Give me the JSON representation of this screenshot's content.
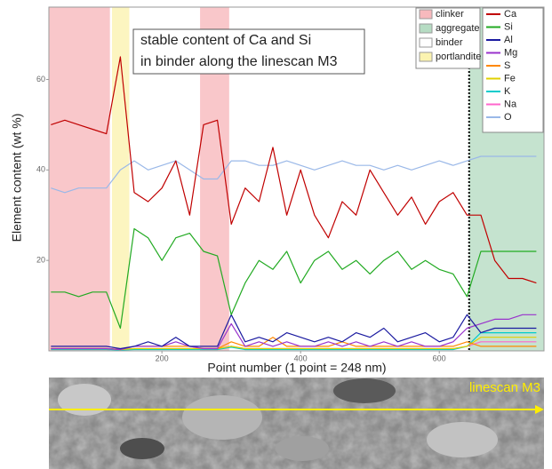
{
  "chart_data": {
    "type": "line",
    "annotation": [
      "stable content of Ca and Si",
      "in binder along the linescan M3"
    ],
    "xlabel": "Point number (1 point = 248 nm)",
    "ylabel": "Element content (wt %)",
    "xlim": [
      37,
      751
    ],
    "ylim": [
      0,
      76
    ],
    "xticks": [
      200,
      400,
      600
    ],
    "yticks": [
      20,
      40,
      60
    ],
    "boundary": 643,
    "region_types": [
      {
        "name": "clinker",
        "color": "#f7b9bd",
        "spans": [
          [
            37,
            125
          ],
          [
            255,
            297
          ]
        ]
      },
      {
        "name": "aggregate",
        "color": "#b6dcc3",
        "spans": [
          [
            643,
            751
          ]
        ]
      },
      {
        "name": "binder",
        "color": "#ffffff",
        "spans": []
      },
      {
        "name": "portlandite",
        "color": "#fbf3b0",
        "spans": [
          [
            128,
            153
          ]
        ]
      }
    ],
    "x": [
      40,
      60,
      80,
      100,
      120,
      140,
      160,
      180,
      200,
      220,
      240,
      260,
      280,
      300,
      320,
      340,
      360,
      380,
      400,
      420,
      440,
      460,
      480,
      500,
      520,
      540,
      560,
      580,
      600,
      620,
      640,
      660,
      680,
      700,
      720,
      740
    ],
    "series": [
      {
        "name": "Ca",
        "color": "#c00000",
        "values": [
          50,
          51,
          50,
          49,
          48,
          65,
          35,
          33,
          36,
          42,
          30,
          50,
          51,
          28,
          36,
          33,
          45,
          30,
          40,
          30,
          25,
          33,
          30,
          40,
          35,
          30,
          34,
          28,
          33,
          35,
          30,
          30,
          20,
          16,
          16,
          15
        ]
      },
      {
        "name": "Si",
        "color": "#22aa22",
        "values": [
          13,
          13,
          12,
          13,
          13,
          5,
          27,
          25,
          20,
          25,
          26,
          22,
          21,
          8,
          15,
          20,
          18,
          22,
          15,
          20,
          22,
          18,
          20,
          17,
          20,
          22,
          18,
          20,
          18,
          17,
          12,
          22,
          22,
          22,
          22,
          22
        ]
      },
      {
        "name": "Al",
        "color": "#1a1aa0",
        "values": [
          1,
          1,
          1,
          1,
          1,
          0.5,
          1,
          2,
          1,
          3,
          1,
          1,
          1,
          8,
          2,
          3,
          2,
          4,
          3,
          2,
          3,
          2,
          4,
          3,
          5,
          2,
          3,
          4,
          2,
          3,
          8,
          4,
          5,
          5,
          5,
          5
        ]
      },
      {
        "name": "Mg",
        "color": "#9933cc",
        "values": [
          0.5,
          0.5,
          0.5,
          0.5,
          0.5,
          0.3,
          1,
          1,
          1,
          2,
          1,
          0.5,
          0.5,
          6,
          1,
          2,
          1,
          2,
          1,
          1,
          2,
          1,
          2,
          1,
          2,
          1,
          2,
          1,
          1,
          2,
          5,
          6,
          7,
          7,
          8,
          8
        ]
      },
      {
        "name": "S",
        "color": "#ff8800",
        "values": [
          0.5,
          0.5,
          0.5,
          0.5,
          0.5,
          0.3,
          1,
          1,
          1,
          1,
          1,
          0.5,
          0.5,
          2,
          1,
          1,
          3,
          1,
          1,
          1,
          1,
          2,
          1,
          1,
          1,
          1,
          1,
          1,
          1,
          1,
          2,
          1,
          1,
          1,
          1,
          1
        ]
      },
      {
        "name": "Fe",
        "color": "#e0d000",
        "values": [
          0.5,
          0.5,
          0.5,
          0.5,
          0.5,
          0.3,
          0.5,
          0.5,
          0.5,
          0.5,
          0.5,
          0.5,
          0.5,
          1,
          0.5,
          0.5,
          0.5,
          0.5,
          0.5,
          0.5,
          0.5,
          0.5,
          0.5,
          0.5,
          0.5,
          0.5,
          0.5,
          0.5,
          0.5,
          0.5,
          1,
          3,
          3,
          3,
          3,
          3
        ]
      },
      {
        "name": "K",
        "color": "#00cccc",
        "values": [
          0.3,
          0.3,
          0.3,
          0.3,
          0.3,
          0.2,
          0.3,
          0.3,
          0.3,
          0.3,
          0.3,
          0.3,
          0.3,
          0.8,
          0.3,
          0.3,
          0.3,
          0.3,
          0.3,
          0.3,
          0.3,
          0.3,
          0.3,
          0.3,
          0.3,
          0.3,
          0.3,
          0.3,
          0.3,
          0.3,
          1,
          4,
          4,
          4,
          4,
          4
        ]
      },
      {
        "name": "Na",
        "color": "#ff66cc",
        "values": [
          0.5,
          0.5,
          0.5,
          0.5,
          0.5,
          0.3,
          0.5,
          0.5,
          0.5,
          0.5,
          0.5,
          0.5,
          0.5,
          1,
          0.5,
          0.5,
          0.5,
          0.5,
          0.5,
          0.5,
          0.5,
          0.5,
          0.5,
          0.5,
          0.5,
          0.5,
          0.5,
          0.5,
          0.5,
          0.5,
          1,
          2,
          2,
          2,
          2,
          2
        ]
      },
      {
        "name": "O",
        "color": "#9ab8e8",
        "values": [
          36,
          35,
          36,
          36,
          36,
          40,
          42,
          40,
          41,
          42,
          40,
          38,
          38,
          42,
          42,
          41,
          41,
          42,
          41,
          40,
          41,
          42,
          41,
          41,
          40,
          41,
          40,
          41,
          42,
          41,
          42,
          43,
          43,
          43,
          43,
          43
        ]
      }
    ]
  },
  "image": {
    "label": "linescan M3"
  }
}
